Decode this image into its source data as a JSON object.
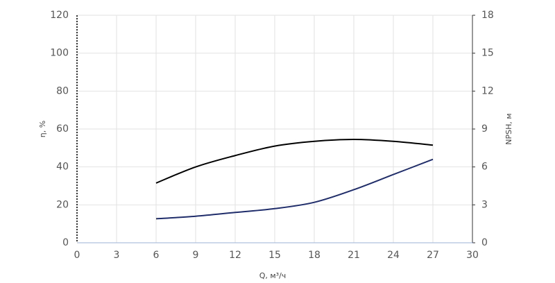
{
  "chart_data": {
    "type": "line",
    "x_label": "Q, м³/ч",
    "y_label": "η, %",
    "y2_label": "NPSH, м",
    "x": [
      6,
      9,
      12,
      15,
      18,
      21,
      24,
      27
    ],
    "series": [
      {
        "name": "η",
        "color": "#000000",
        "values": [
          31.5,
          40,
          46,
          51,
          53.5,
          54.5,
          53.5,
          51.5
        ]
      },
      {
        "name": "NPSH",
        "color": "#1f2d6b",
        "axis": "y2",
        "values": [
          1.9,
          2.1,
          2.4,
          2.7,
          3.2,
          4.2,
          5.4,
          6.6
        ]
      }
    ],
    "xlim": [
      0,
      30
    ],
    "xticks": [
      0,
      3,
      6,
      9,
      12,
      15,
      18,
      21,
      24,
      27,
      30
    ],
    "ylim": [
      0,
      120
    ],
    "yticks": [
      0,
      20,
      40,
      60,
      80,
      100,
      120
    ],
    "y2lim": [
      0,
      18
    ],
    "y2ticks": [
      0,
      3,
      6,
      9,
      12,
      15,
      18
    ],
    "grid": true
  }
}
